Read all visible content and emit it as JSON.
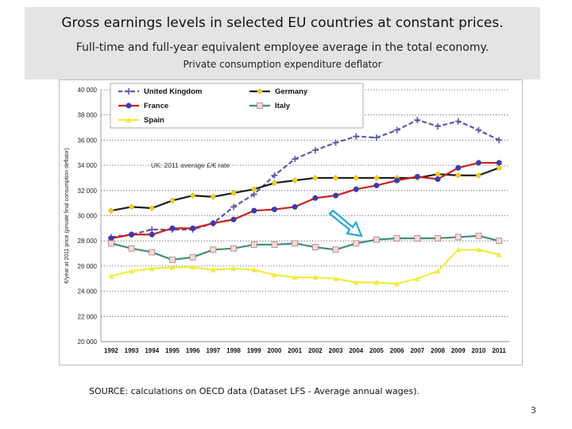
{
  "slide": {
    "title": "Gross earnings levels in selected EU countries at constant prices.",
    "subtitle": "Full-time and full-year equivalent employee average in the total economy.",
    "subtitle2": "Private consumption expenditure deflator",
    "source": "SOURCE: calculations on OECD data  (Dataset LFS - Average annual wages).",
    "page_number": "3"
  },
  "chart_data": {
    "type": "line",
    "title": "",
    "xlabel": "",
    "ylabel": "€/year at 2011 price (private final consumption deflator)",
    "x": [
      "1992",
      "1993",
      "1994",
      "1995",
      "1996",
      "1997",
      "1998",
      "1999",
      "2000",
      "2001",
      "2002",
      "2003",
      "2004",
      "2005",
      "2006",
      "2007",
      "2008",
      "2009",
      "2010",
      "2011"
    ],
    "ylim": [
      20000,
      40000
    ],
    "yticks": [
      20000,
      22000,
      24000,
      26000,
      28000,
      30000,
      32000,
      34000,
      36000,
      38000,
      40000
    ],
    "ytick_labels": [
      "20 000",
      "22 000",
      "24 000",
      "26 000",
      "28 000",
      "30 000",
      "32 000",
      "34 000",
      "36 000",
      "38 000",
      "40 000"
    ],
    "grid": "horizontal dotted",
    "legend_position": "top-left",
    "annotation": "UK: 2011 average £/€ rate",
    "series": [
      {
        "name": "United Kingdom",
        "color": "#5a5aa8",
        "marker": "plus",
        "dashed": true,
        "values": [
          28300,
          28500,
          28900,
          28900,
          28900,
          29400,
          30700,
          31700,
          33200,
          34500,
          35200,
          35800,
          36300,
          36200,
          36800,
          37600,
          37100,
          37500,
          36800,
          36000
        ]
      },
      {
        "name": "Germany",
        "color": "#1c1c1c",
        "marker": "diamond",
        "marker_color": "#f4d400",
        "values": [
          30400,
          30700,
          30600,
          31200,
          31600,
          31500,
          31800,
          32100,
          32600,
          32800,
          33000,
          33000,
          33000,
          33000,
          33000,
          33000,
          33300,
          33200,
          33200,
          33800
        ]
      },
      {
        "name": "France",
        "color": "#c8201e",
        "marker": "circle",
        "marker_color": "#3a3ab0",
        "values": [
          28200,
          28500,
          28500,
          29000,
          29000,
          29400,
          29700,
          30400,
          30500,
          30700,
          31400,
          31600,
          32100,
          32400,
          32800,
          33100,
          32900,
          33800,
          34200,
          34200
        ]
      },
      {
        "name": "Italy",
        "color": "#3e9070",
        "marker": "square",
        "marker_color": "#f4dada",
        "values": [
          27800,
          27400,
          27100,
          26500,
          26700,
          27300,
          27400,
          27700,
          27700,
          27800,
          27500,
          27300,
          27800,
          28100,
          28200,
          28200,
          28200,
          28300,
          28400,
          28000
        ]
      },
      {
        "name": "Spain",
        "color": "#f1ec3c",
        "marker": "triangle",
        "marker_color": "#f1ec3c",
        "values": [
          25200,
          25600,
          25800,
          25900,
          25900,
          25700,
          25800,
          25700,
          25300,
          25100,
          25100,
          25000,
          24700,
          24700,
          24600,
          25000,
          25600,
          27300,
          27300,
          26900
        ]
      }
    ]
  }
}
